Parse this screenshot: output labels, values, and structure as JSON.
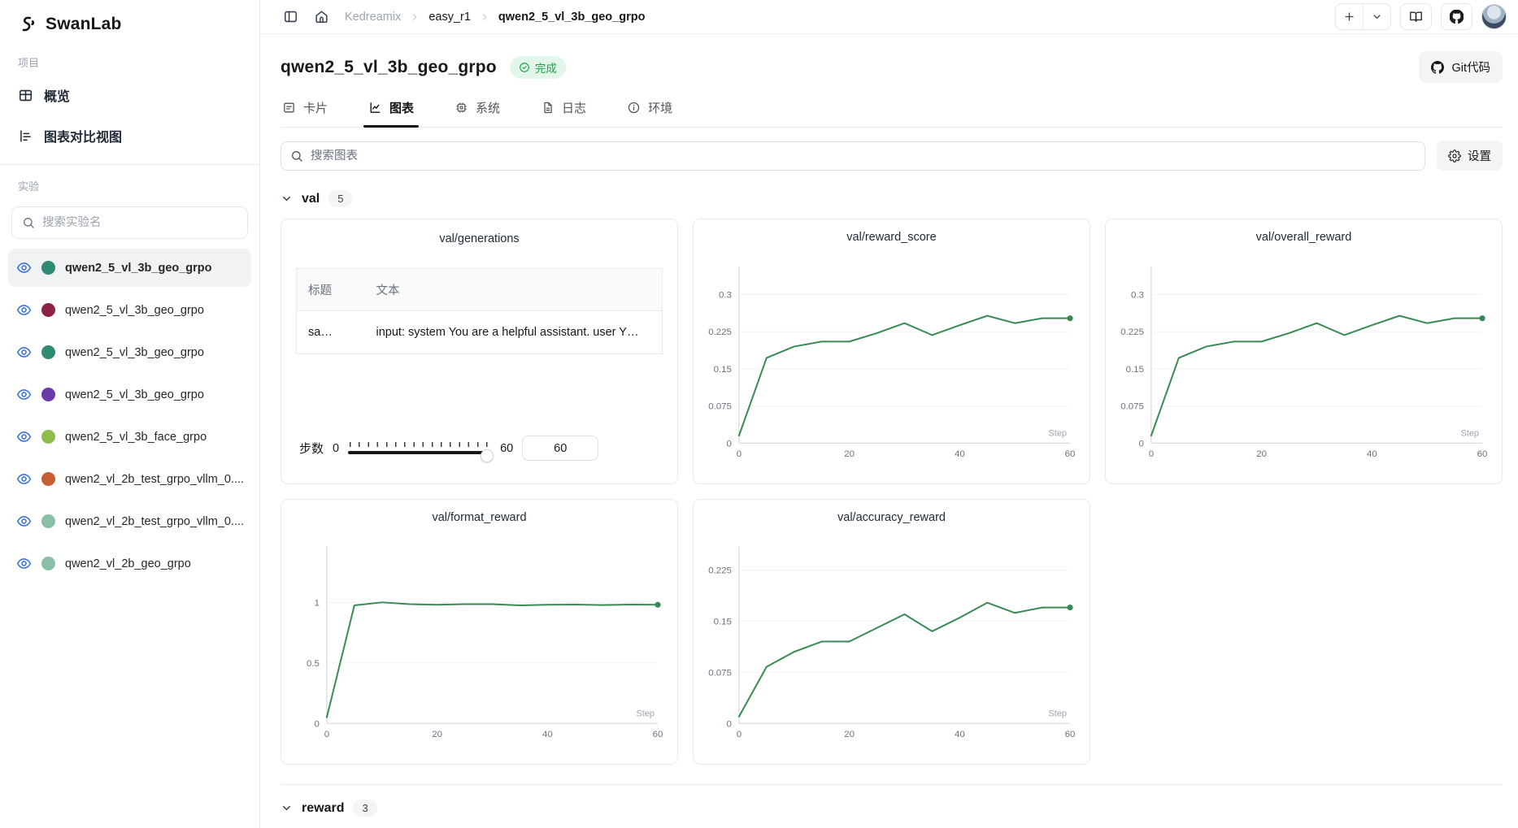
{
  "brand": {
    "name": "SwanLab"
  },
  "sidebar": {
    "project_label": "项目",
    "nav": [
      {
        "label": "概览",
        "icon": "overview-grid-icon"
      },
      {
        "label": "图表对比视图",
        "icon": "chart-compare-icon"
      }
    ],
    "experiments_label": "实验",
    "search_placeholder": "搜索实验名",
    "experiments": [
      {
        "name": "qwen2_5_vl_3b_geo_grpo",
        "color": "#2e8a73",
        "selected": true
      },
      {
        "name": "qwen2_5_vl_3b_geo_grpo",
        "color": "#8e2148",
        "selected": false
      },
      {
        "name": "qwen2_5_vl_3b_geo_grpo",
        "color": "#2e8a73",
        "selected": false
      },
      {
        "name": "qwen2_5_vl_3b_geo_grpo",
        "color": "#693caa",
        "selected": false
      },
      {
        "name": "qwen2_5_vl_3b_face_grpo",
        "color": "#8dbe4d",
        "selected": false
      },
      {
        "name": "qwen2_vl_2b_test_grpo_vllm_0....",
        "color": "#c75e34",
        "selected": false
      },
      {
        "name": "qwen2_vl_2b_test_grpo_vllm_0....",
        "color": "#89bfa7",
        "selected": false
      },
      {
        "name": "qwen2_vl_2b_geo_grpo",
        "color": "#89bfa7",
        "selected": false
      }
    ]
  },
  "topbar": {
    "breadcrumb": {
      "root": "Kedreamix",
      "project": "easy_r1",
      "run": "qwen2_5_vl_3b_geo_grpo"
    }
  },
  "header": {
    "title": "qwen2_5_vl_3b_geo_grpo",
    "status": "完成",
    "git_button": "Git代码"
  },
  "tabs": [
    {
      "label": "卡片",
      "active": false
    },
    {
      "label": "图表",
      "active": true
    },
    {
      "label": "系统",
      "active": false
    },
    {
      "label": "日志",
      "active": false
    },
    {
      "label": "环境",
      "active": false
    }
  ],
  "toolbar": {
    "search_placeholder": "搜索图表",
    "settings_label": "设置"
  },
  "sections": [
    {
      "name": "val",
      "count": "5"
    },
    {
      "name": "reward",
      "count": "3"
    }
  ],
  "generations_card": {
    "title": "val/generations",
    "table": {
      "headers": [
        "标题",
        "文本"
      ],
      "rows": [
        [
          "sa…",
          "input: system You are a helpful assistant. user Y…"
        ]
      ]
    },
    "slider": {
      "label": "步数",
      "min": "0",
      "max": "60",
      "value": "60"
    }
  },
  "chart_data": [
    {
      "type": "line",
      "title": "val/reward_score",
      "xlabel": "Step",
      "x": [
        0,
        5,
        10,
        15,
        20,
        25,
        30,
        35,
        40,
        45,
        50,
        55,
        60
      ],
      "values": [
        0.015,
        0.172,
        0.195,
        0.205,
        0.205,
        0.222,
        0.242,
        0.218,
        0.238,
        0.257,
        0.242,
        0.252,
        0.252
      ],
      "xticks": [
        0,
        20,
        40,
        60
      ],
      "yticks": [
        0,
        0.075,
        0.15,
        0.225,
        0.3
      ],
      "ylim": [
        0,
        0.347
      ],
      "color": "#388b52"
    },
    {
      "type": "line",
      "title": "val/overall_reward",
      "xlabel": "Step",
      "x": [
        0,
        5,
        10,
        15,
        20,
        25,
        30,
        35,
        40,
        45,
        50,
        55,
        60
      ],
      "values": [
        0.015,
        0.172,
        0.195,
        0.205,
        0.205,
        0.222,
        0.242,
        0.218,
        0.238,
        0.257,
        0.242,
        0.252,
        0.252
      ],
      "xticks": [
        0,
        20,
        40,
        60
      ],
      "yticks": [
        0,
        0.075,
        0.15,
        0.225,
        0.3
      ],
      "ylim": [
        0,
        0.347
      ],
      "color": "#388b52"
    },
    {
      "type": "line",
      "title": "val/format_reward",
      "xlabel": "Step",
      "x": [
        0,
        5,
        10,
        15,
        20,
        25,
        30,
        35,
        40,
        45,
        50,
        55,
        60
      ],
      "values": [
        0.05,
        0.975,
        1.0,
        0.985,
        0.98,
        0.985,
        0.985,
        0.975,
        0.98,
        0.982,
        0.978,
        0.982,
        0.98
      ],
      "xticks": [
        0,
        20,
        40,
        60
      ],
      "yticks": [
        0,
        0.5,
        1
      ],
      "ylim": [
        0,
        1.42
      ],
      "color": "#388b52"
    },
    {
      "type": "line",
      "title": "val/accuracy_reward",
      "xlabel": "Step",
      "x": [
        0,
        5,
        10,
        15,
        20,
        25,
        30,
        35,
        40,
        45,
        50,
        55,
        60
      ],
      "values": [
        0.01,
        0.083,
        0.105,
        0.12,
        0.12,
        0.14,
        0.16,
        0.135,
        0.155,
        0.177,
        0.162,
        0.17,
        0.17
      ],
      "xticks": [
        0,
        20,
        40,
        60
      ],
      "yticks": [
        0,
        0.075,
        0.15,
        0.225
      ],
      "ylim": [
        0,
        0.252
      ],
      "color": "#388b52"
    }
  ]
}
